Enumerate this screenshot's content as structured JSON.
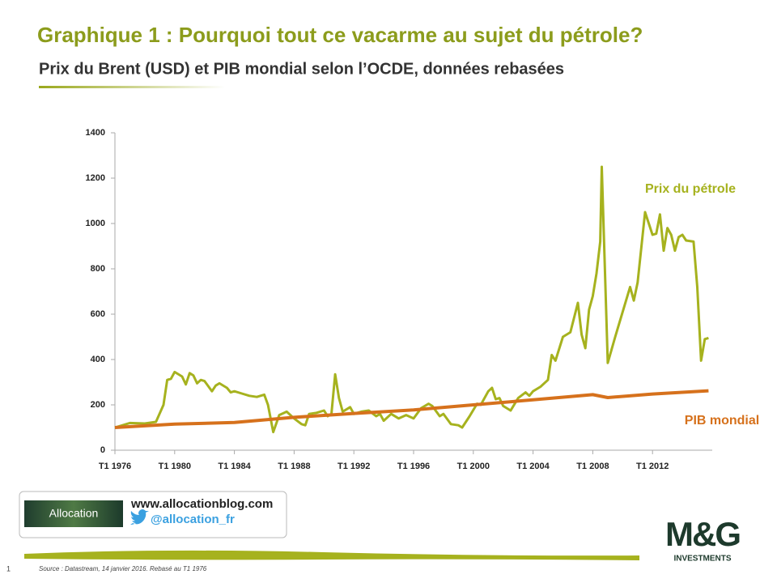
{
  "slide": {
    "title": "Graphique 1 : Pourquoi tout ce vacarme au sujet du pétrole?",
    "subtitle": "Prix du Brent (USD) et PIB mondial selon l’OCDE, données rebasées",
    "logo_text": "Allocation",
    "website": "www.allocationblog.com",
    "twitter": "@allocation_fr",
    "brand": "M&G",
    "brand_sub": "INVESTMENTS",
    "source": "Source : Datastream,  14 janvier 2016. Rebasé au T1 1976",
    "page_number": "1"
  },
  "chart_data": {
    "type": "line",
    "xlim": [
      1976,
      2016
    ],
    "ylim": [
      0,
      1400
    ],
    "yticks": [
      0,
      200,
      400,
      600,
      800,
      1000,
      1200,
      1400
    ],
    "xticks": [
      {
        "value": 1976,
        "label": "T1 1976"
      },
      {
        "value": 1980,
        "label": "T1 1980"
      },
      {
        "value": 1984,
        "label": "T1 1984"
      },
      {
        "value": 1988,
        "label": "T1 1988"
      },
      {
        "value": 1992,
        "label": "T1 1992"
      },
      {
        "value": 1996,
        "label": "T1 1996"
      },
      {
        "value": 2000,
        "label": "T1 2000"
      },
      {
        "value": 2004,
        "label": "T1 2004"
      },
      {
        "value": 2008,
        "label": "T1 2008"
      },
      {
        "value": 2012,
        "label": "T1 2012"
      }
    ],
    "grid": false,
    "series": [
      {
        "name": "Prix du pétrole",
        "color": "#a6b21e",
        "x": [
          1976,
          1977,
          1978,
          1978.75,
          1979.25,
          1979.5,
          1979.75,
          1980,
          1980.5,
          1980.75,
          1981,
          1981.25,
          1981.5,
          1981.75,
          1982,
          1982.5,
          1982.75,
          1983,
          1983.5,
          1983.75,
          1984,
          1984.5,
          1985,
          1985.5,
          1986,
          1986.25,
          1986.6,
          1987,
          1987.5,
          1988,
          1988.5,
          1988.75,
          1989,
          1989.5,
          1990,
          1990.25,
          1990.5,
          1990.75,
          1991,
          1991.25,
          1991.75,
          1992,
          1992.5,
          1993,
          1993.5,
          1993.75,
          1994,
          1994.5,
          1995,
          1995.5,
          1996,
          1996.5,
          1997,
          1997.25,
          1997.75,
          1998,
          1998.5,
          1999,
          1999.25,
          1999.75,
          2000.25,
          2000.5,
          2001,
          2001.25,
          2001.5,
          2001.75,
          2002,
          2002.5,
          2003,
          2003.5,
          2003.75,
          2004,
          2004.5,
          2005,
          2005.25,
          2005.5,
          2006,
          2006.5,
          2007,
          2007.25,
          2007.5,
          2007.75,
          2008,
          2008.25,
          2008.5,
          2008.6,
          2009,
          2009.5,
          2010,
          2010.5,
          2010.75,
          2011,
          2011.5,
          2011.75,
          2012,
          2012.25,
          2012.5,
          2012.75,
          2013,
          2013.25,
          2013.5,
          2013.75,
          2014,
          2014.25,
          2014.75,
          2015,
          2015.25,
          2015.5,
          2015.75
        ],
        "values": [
          100,
          120,
          118,
          125,
          200,
          310,
          315,
          345,
          325,
          290,
          340,
          330,
          295,
          310,
          305,
          260,
          285,
          295,
          275,
          255,
          260,
          250,
          240,
          235,
          245,
          200,
          80,
          155,
          170,
          140,
          115,
          110,
          160,
          165,
          175,
          150,
          160,
          335,
          230,
          170,
          190,
          160,
          170,
          175,
          150,
          160,
          130,
          160,
          140,
          155,
          140,
          185,
          205,
          195,
          150,
          160,
          115,
          110,
          100,
          150,
          205,
          200,
          260,
          275,
          225,
          230,
          195,
          175,
          230,
          255,
          240,
          260,
          280,
          310,
          420,
          395,
          500,
          520,
          650,
          510,
          450,
          620,
          680,
          780,
          920,
          1250,
          385,
          500,
          610,
          720,
          660,
          740,
          1050,
          1000,
          950,
          955,
          1040,
          880,
          980,
          950,
          880,
          940,
          950,
          925,
          920,
          720,
          395,
          490,
          495
        ]
      },
      {
        "name": "PIB mondial",
        "color": "#d6711c",
        "x": [
          1976,
          1980,
          1984,
          1988,
          1992,
          1996,
          2000,
          2004,
          2008,
          2009,
          2012,
          2015.75
        ],
        "values": [
          100,
          115,
          122,
          145,
          162,
          178,
          200,
          222,
          245,
          232,
          248,
          262
        ]
      }
    ]
  }
}
